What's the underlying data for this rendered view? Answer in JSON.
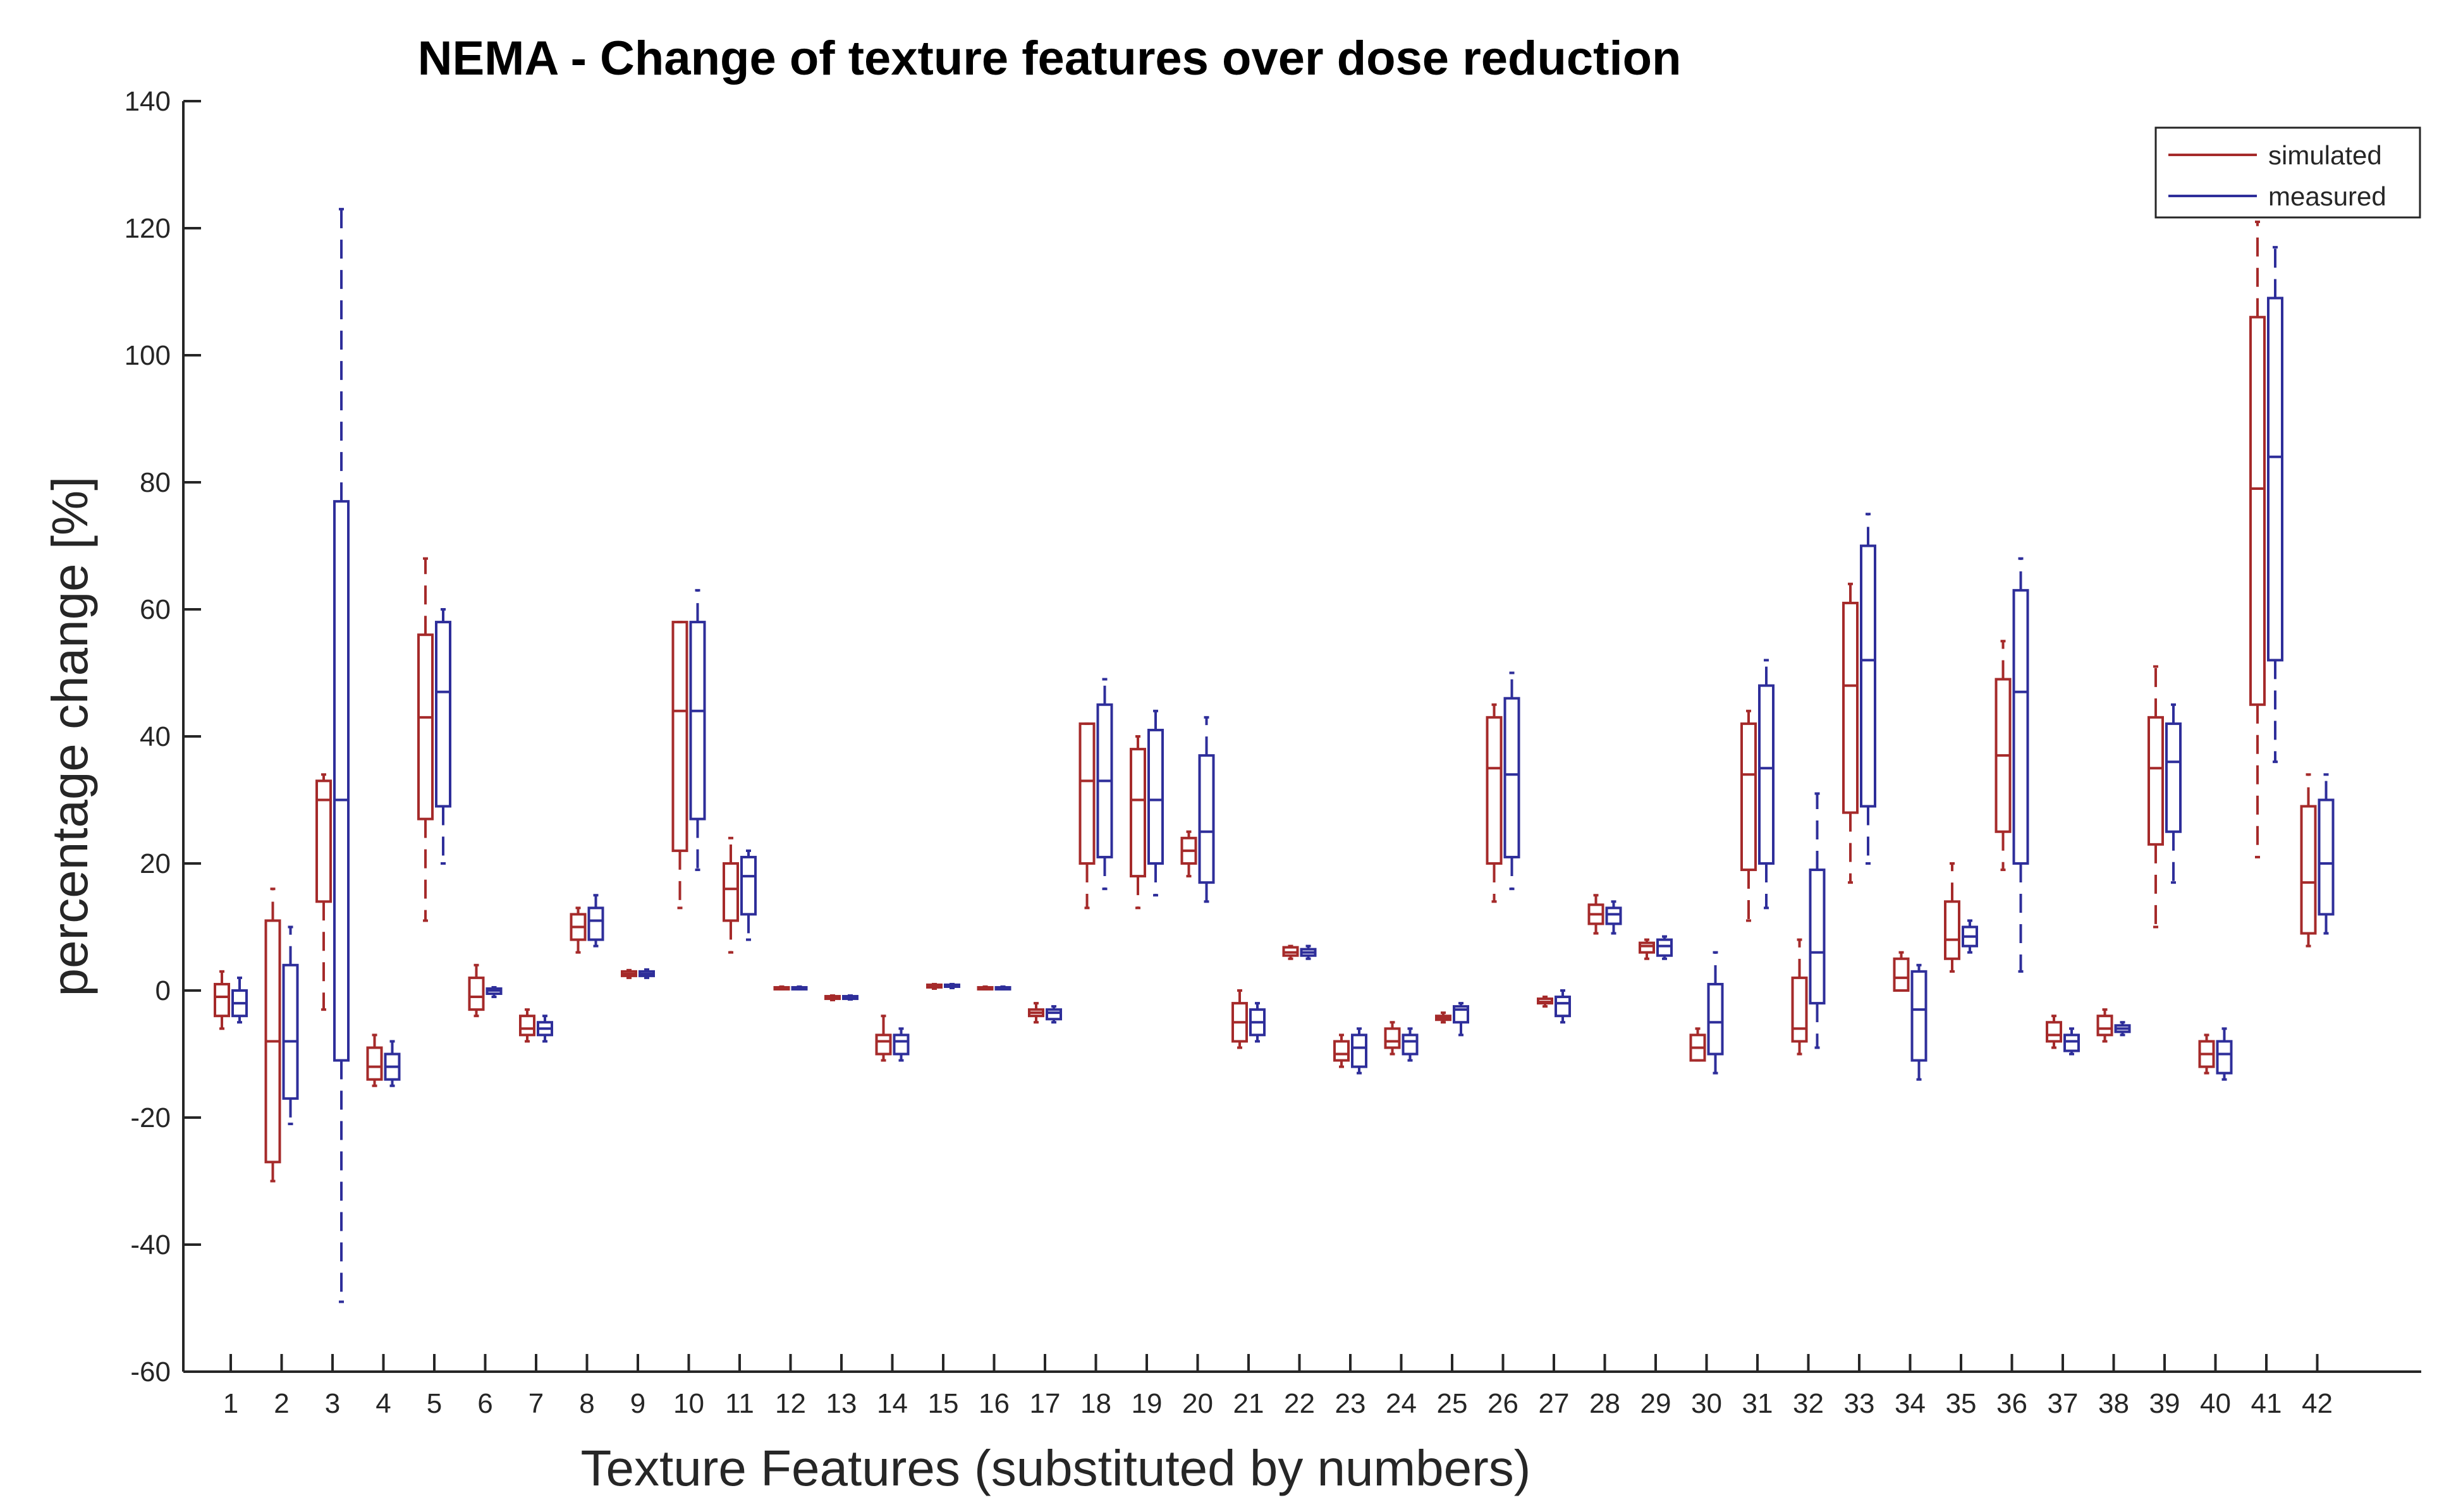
{
  "chart_data": {
    "type": "boxplot",
    "title": "NEMA - Change of texture features over dose reduction",
    "xlabel": "Texture Features (substituted by numbers)",
    "ylabel": "percentage change [%]",
    "ylim": [
      -60,
      140
    ],
    "yticks": [
      140,
      120,
      100,
      80,
      60,
      40,
      20,
      0,
      -20,
      -40,
      -60
    ],
    "categories": [
      "1",
      "2",
      "3",
      "4",
      "5",
      "6",
      "7",
      "8",
      "9",
      "10",
      "11",
      "12",
      "13",
      "14",
      "15",
      "16",
      "17",
      "18",
      "19",
      "20",
      "21",
      "22",
      "23",
      "24",
      "25",
      "26",
      "27",
      "28",
      "29",
      "30",
      "31",
      "32",
      "33",
      "34",
      "35",
      "36",
      "37",
      "38",
      "39",
      "40",
      "41",
      "42"
    ],
    "legend": {
      "position": "top-right",
      "entries": [
        "simulated",
        "measured"
      ]
    },
    "series": [
      {
        "name": "simulated",
        "color": "#a52a2a",
        "boxes": [
          [
            -6,
            -4,
            -1,
            1,
            3
          ],
          [
            -30,
            -27,
            -8,
            11,
            16
          ],
          [
            -3,
            14,
            30,
            33,
            34
          ],
          [
            -15,
            -14,
            -12,
            -9,
            -7
          ],
          [
            11,
            27,
            43,
            56,
            68
          ],
          [
            -4,
            -3,
            -1,
            2,
            4
          ],
          [
            -8,
            -7,
            -6,
            -4,
            -3
          ],
          [
            6,
            8,
            10,
            12,
            13
          ],
          [
            2,
            2.3,
            2.6,
            3,
            3.2
          ],
          [
            13,
            22,
            44,
            58,
            58
          ],
          [
            6,
            11,
            16,
            20,
            24
          ],
          [
            0.2,
            0.3,
            0.4,
            0.5,
            0.6
          ],
          [
            -1.5,
            -1.3,
            -1.1,
            -0.9,
            -0.8
          ],
          [
            -11,
            -10,
            -8,
            -7,
            -4
          ],
          [
            0.3,
            0.5,
            0.7,
            0.9,
            1
          ],
          [
            0.2,
            0.3,
            0.4,
            0.5,
            0.6
          ],
          [
            -5,
            -4,
            -3.5,
            -3,
            -2
          ],
          [
            13,
            20,
            33,
            42,
            42
          ],
          [
            13,
            18,
            30,
            38,
            40
          ],
          [
            18,
            20,
            22,
            24,
            25
          ],
          [
            -9,
            -8,
            -5,
            -2,
            0
          ],
          [
            5,
            5.5,
            6,
            6.8,
            7
          ],
          [
            -12,
            -11,
            -10,
            -8,
            -7
          ],
          [
            -10,
            -9,
            -8,
            -6,
            -5
          ],
          [
            -5,
            -4.6,
            -4.3,
            -4,
            -3.5
          ],
          [
            14,
            20,
            35,
            43,
            45
          ],
          [
            -2.5,
            -2,
            -1.8,
            -1.3,
            -1
          ],
          [
            9,
            10.5,
            12,
            13.5,
            15
          ],
          [
            5,
            6,
            7,
            7.5,
            8
          ],
          [
            -11,
            -11,
            -9,
            -7,
            -6
          ],
          [
            11,
            19,
            34,
            42,
            44
          ],
          [
            -10,
            -8,
            -6,
            2,
            8
          ],
          [
            17,
            28,
            48,
            61,
            64
          ],
          [
            0,
            0,
            2,
            5,
            6
          ],
          [
            3,
            5,
            8,
            14,
            20
          ],
          [
            19,
            25,
            37,
            49,
            55
          ],
          [
            -9,
            -8,
            -7,
            -5,
            -4
          ],
          [
            -8,
            -7,
            -6,
            -4,
            -3
          ],
          [
            10,
            23,
            35,
            43,
            51
          ],
          [
            -13,
            -12,
            -10,
            -8,
            -7
          ],
          [
            21,
            45,
            79,
            106,
            121
          ],
          [
            7,
            9,
            17,
            29,
            34
          ]
        ]
      },
      {
        "name": "measured",
        "color": "#2e2e9a",
        "boxes": [
          [
            -5,
            -4,
            -2,
            0,
            2
          ],
          [
            -21,
            -17,
            -8,
            4,
            10
          ],
          [
            -49,
            -11,
            30,
            77,
            123
          ],
          [
            -15,
            -14,
            -12,
            -10,
            -8
          ],
          [
            20,
            29,
            47,
            58,
            60
          ],
          [
            -1,
            -0.5,
            0,
            0.3,
            0.5
          ],
          [
            -8,
            -7,
            -6,
            -5,
            -4
          ],
          [
            7,
            8,
            11,
            13,
            15
          ],
          [
            2,
            2.3,
            2.6,
            3,
            3.3
          ],
          [
            19,
            27,
            44,
            58,
            63
          ],
          [
            8,
            12,
            18,
            21,
            22
          ],
          [
            0.2,
            0.3,
            0.4,
            0.5,
            0.6
          ],
          [
            -1.4,
            -1.3,
            -1.1,
            -0.9,
            -0.8
          ],
          [
            -11,
            -10,
            -8,
            -7,
            -6
          ],
          [
            0.4,
            0.6,
            0.8,
            0.9,
            1
          ],
          [
            0.2,
            0.3,
            0.4,
            0.5,
            0.6
          ],
          [
            -5,
            -4.5,
            -3.5,
            -3,
            -2.5
          ],
          [
            16,
            21,
            33,
            45,
            49
          ],
          [
            15,
            20,
            30,
            41,
            44
          ],
          [
            14,
            17,
            25,
            37,
            43
          ],
          [
            -8,
            -7,
            -5,
            -3,
            -2
          ],
          [
            5,
            5.5,
            6,
            6.5,
            7
          ],
          [
            -13,
            -12,
            -9,
            -7,
            -6
          ],
          [
            -11,
            -10,
            -8,
            -7,
            -6
          ],
          [
            -7,
            -5,
            -3,
            -2.5,
            -2
          ],
          [
            16,
            21,
            34,
            46,
            50
          ],
          [
            -5,
            -4,
            -2,
            -1,
            0
          ],
          [
            9,
            10.5,
            12,
            13,
            14
          ],
          [
            5,
            5.5,
            7,
            8,
            8.5
          ],
          [
            -13,
            -10,
            -5,
            1,
            6
          ],
          [
            13,
            20,
            35,
            48,
            52
          ],
          [
            -9,
            -2,
            6,
            19,
            31
          ],
          [
            20,
            29,
            52,
            70,
            75
          ],
          [
            -14,
            -11,
            -3,
            3,
            4
          ],
          [
            6,
            7,
            8.5,
            10,
            11
          ],
          [
            3,
            20,
            47,
            63,
            68
          ],
          [
            -10,
            -9.5,
            -8,
            -7,
            -6
          ],
          [
            -7,
            -6.5,
            -6,
            -5.5,
            -5
          ],
          [
            17,
            25,
            36,
            42,
            45
          ],
          [
            -14,
            -13,
            -10,
            -8,
            -6
          ],
          [
            36,
            52,
            84,
            109,
            117
          ],
          [
            9,
            12,
            20,
            30,
            34
          ]
        ]
      }
    ]
  }
}
